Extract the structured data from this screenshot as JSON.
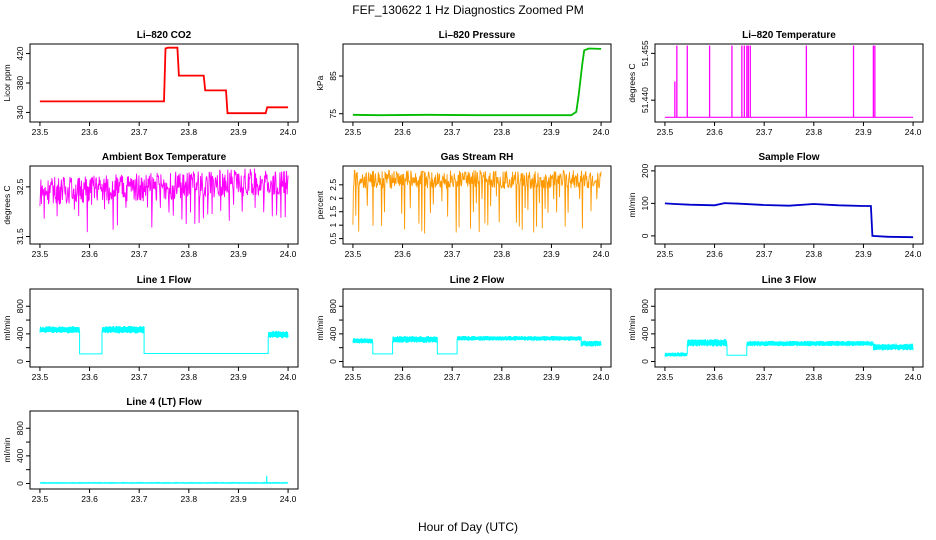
{
  "main_title": "FEF_130622  1 Hz Diagnostics Zoomed PM",
  "x_axis_label": "Hour of Day (UTC)",
  "chart_data": [
    {
      "type": "line",
      "title": "Li–820 CO2",
      "ylabel": "Licor ppm",
      "color": "#ff0000",
      "xlim": [
        23.48,
        24.02
      ],
      "ylim": [
        327,
        433
      ],
      "xticks": [
        23.5,
        23.6,
        23.7,
        23.8,
        23.9,
        24.0
      ],
      "yticks": [
        340,
        380,
        420
      ],
      "points": [
        [
          23.5,
          355
        ],
        [
          23.75,
          355
        ],
        [
          23.753,
          427
        ],
        [
          23.758,
          428
        ],
        [
          23.777,
          428
        ],
        [
          23.78,
          390
        ],
        [
          23.83,
          390
        ],
        [
          23.833,
          370
        ],
        [
          23.875,
          370
        ],
        [
          23.878,
          339
        ],
        [
          23.955,
          339
        ],
        [
          23.958,
          347
        ],
        [
          24.0,
          347
        ]
      ]
    },
    {
      "type": "line",
      "title": "Li–820 Pressure",
      "ylabel": "kPa",
      "color": "#00bb00",
      "xlim": [
        23.48,
        24.02
      ],
      "ylim": [
        72.8,
        93.5
      ],
      "xticks": [
        23.5,
        23.6,
        23.7,
        23.8,
        23.9,
        24.0
      ],
      "yticks": [
        75,
        85
      ],
      "points": [
        [
          23.5,
          74.7
        ],
        [
          23.55,
          74.6
        ],
        [
          23.65,
          74.7
        ],
        [
          23.75,
          74.6
        ],
        [
          23.85,
          74.6
        ],
        [
          23.94,
          74.6
        ],
        [
          23.95,
          75.5
        ],
        [
          23.955,
          80
        ],
        [
          23.962,
          88
        ],
        [
          23.966,
          91.8
        ],
        [
          23.975,
          92.3
        ],
        [
          24.0,
          92.2
        ]
      ]
    },
    {
      "type": "spikes",
      "title": "Li–820 Temperature",
      "ylabel": "degrees C",
      "color": "#ff00ff",
      "xlim": [
        23.48,
        24.02
      ],
      "ylim": [
        51.433,
        51.458
      ],
      "xticks": [
        23.5,
        23.6,
        23.7,
        23.8,
        23.9,
        24.0
      ],
      "yticks": [
        51.44,
        51.455
      ],
      "ytick_labels": [
        "51.440",
        "51.455"
      ],
      "baseline": 51.4345,
      "spikes": [
        [
          23.52,
          51.446
        ],
        [
          23.524,
          51.4575
        ],
        [
          23.545,
          51.4575
        ],
        [
          23.59,
          51.4575
        ],
        [
          23.635,
          51.4575
        ],
        [
          23.655,
          51.4575
        ],
        [
          23.66,
          51.4575
        ],
        [
          23.665,
          51.4575
        ],
        [
          23.668,
          51.4575
        ],
        [
          23.672,
          51.4575
        ],
        [
          23.785,
          51.4575
        ],
        [
          23.88,
          51.4575
        ],
        [
          23.92,
          51.4575
        ],
        [
          23.923,
          51.4575
        ]
      ]
    },
    {
      "type": "noise",
      "title": "Ambient Box Temperature",
      "ylabel": "degrees C",
      "color": "#ff00ff",
      "xlim": [
        23.48,
        24.02
      ],
      "ylim": [
        31.35,
        32.92
      ],
      "xticks": [
        23.5,
        23.6,
        23.7,
        23.8,
        23.9,
        24.0
      ],
      "yticks": [
        31.5,
        32.5
      ],
      "center_start": 32.42,
      "center_end": 32.62,
      "spread": 0.28,
      "dip_depth": 0.9,
      "dip_every": 9
    },
    {
      "type": "noise",
      "title": "Gas Stream RH",
      "ylabel": "percent",
      "color": "#ff9900",
      "xlim": [
        23.48,
        24.02
      ],
      "ylim": [
        0.3,
        3.2
      ],
      "xticks": [
        23.5,
        23.6,
        23.7,
        23.8,
        23.9,
        24.0
      ],
      "yticks": [
        0.5,
        1.0,
        1.5,
        2.0,
        2.5
      ],
      "center_start": 2.7,
      "center_end": 2.7,
      "spread": 0.35,
      "dip_depth": 2.1,
      "dip_every": 6
    },
    {
      "type": "line",
      "title": "Sample Flow",
      "ylabel": "ml/min",
      "color": "#0000cc",
      "xlim": [
        23.48,
        24.02
      ],
      "ylim": [
        -25,
        215
      ],
      "xticks": [
        23.5,
        23.6,
        23.7,
        23.8,
        23.9,
        24.0
      ],
      "yticks": [
        0,
        100,
        200
      ],
      "points": [
        [
          23.5,
          100
        ],
        [
          23.52,
          98
        ],
        [
          23.55,
          96
        ],
        [
          23.6,
          94
        ],
        [
          23.62,
          101
        ],
        [
          23.65,
          99
        ],
        [
          23.7,
          95
        ],
        [
          23.75,
          93
        ],
        [
          23.8,
          98
        ],
        [
          23.85,
          94
        ],
        [
          23.9,
          92
        ],
        [
          23.915,
          92
        ],
        [
          23.918,
          0
        ],
        [
          23.95,
          -3
        ],
        [
          24.0,
          -4
        ]
      ]
    },
    {
      "type": "band",
      "title": "Line 1 Flow",
      "ylabel": "ml/min",
      "color": "#00ffff",
      "xlim": [
        23.48,
        24.02
      ],
      "ylim": [
        -80,
        1050
      ],
      "xticks": [
        23.5,
        23.6,
        23.7,
        23.8,
        23.9,
        24.0
      ],
      "yticks": [
        0,
        200,
        400,
        600,
        800
      ],
      "ytick_labels": [
        "0",
        "400",
        "800"
      ],
      "segments": [
        [
          23.5,
          23.58,
          460,
          100
        ],
        [
          23.58,
          23.625,
          110,
          0
        ],
        [
          23.625,
          23.71,
          460,
          110
        ],
        [
          23.71,
          23.96,
          115,
          0
        ],
        [
          23.96,
          24.0,
          390,
          110
        ]
      ]
    },
    {
      "type": "band",
      "title": "Line 2 Flow",
      "ylabel": "ml/min",
      "color": "#00ffff",
      "xlim": [
        23.48,
        24.02
      ],
      "ylim": [
        -80,
        1050
      ],
      "xticks": [
        23.5,
        23.6,
        23.7,
        23.8,
        23.9,
        24.0
      ],
      "yticks": [
        0,
        200,
        400,
        600,
        800
      ],
      "ytick_labels": [
        "0",
        "400",
        "800"
      ],
      "segments": [
        [
          23.5,
          23.54,
          300,
          80
        ],
        [
          23.54,
          23.58,
          110,
          0
        ],
        [
          23.58,
          23.67,
          320,
          100
        ],
        [
          23.67,
          23.71,
          110,
          0
        ],
        [
          23.71,
          23.96,
          335,
          70
        ],
        [
          23.96,
          24.0,
          260,
          90
        ]
      ]
    },
    {
      "type": "band",
      "title": "Line 3 Flow",
      "ylabel": "ml/min",
      "color": "#00ffff",
      "xlim": [
        23.48,
        24.02
      ],
      "ylim": [
        -80,
        1050
      ],
      "xticks": [
        23.5,
        23.6,
        23.7,
        23.8,
        23.9,
        24.0
      ],
      "yticks": [
        0,
        200,
        400,
        600,
        800
      ],
      "ytick_labels": [
        "0",
        "400",
        "800"
      ],
      "segments": [
        [
          23.5,
          23.545,
          100,
          60
        ],
        [
          23.545,
          23.625,
          270,
          110
        ],
        [
          23.625,
          23.665,
          90,
          0
        ],
        [
          23.665,
          23.92,
          260,
          80
        ],
        [
          23.92,
          24.0,
          210,
          100
        ]
      ]
    },
    {
      "type": "band",
      "title": "Line 4 (LT) Flow",
      "ylabel": "ml/min",
      "color": "#00ffff",
      "xlim": [
        23.48,
        24.02
      ],
      "ylim": [
        -80,
        1050
      ],
      "xticks": [
        23.5,
        23.6,
        23.7,
        23.8,
        23.9,
        24.0
      ],
      "yticks": [
        0,
        200,
        400,
        600,
        800
      ],
      "ytick_labels": [
        "0",
        "400",
        "800"
      ],
      "segments": [
        [
          23.5,
          24.0,
          8,
          12
        ]
      ],
      "spike": [
        23.957,
        110
      ]
    }
  ]
}
